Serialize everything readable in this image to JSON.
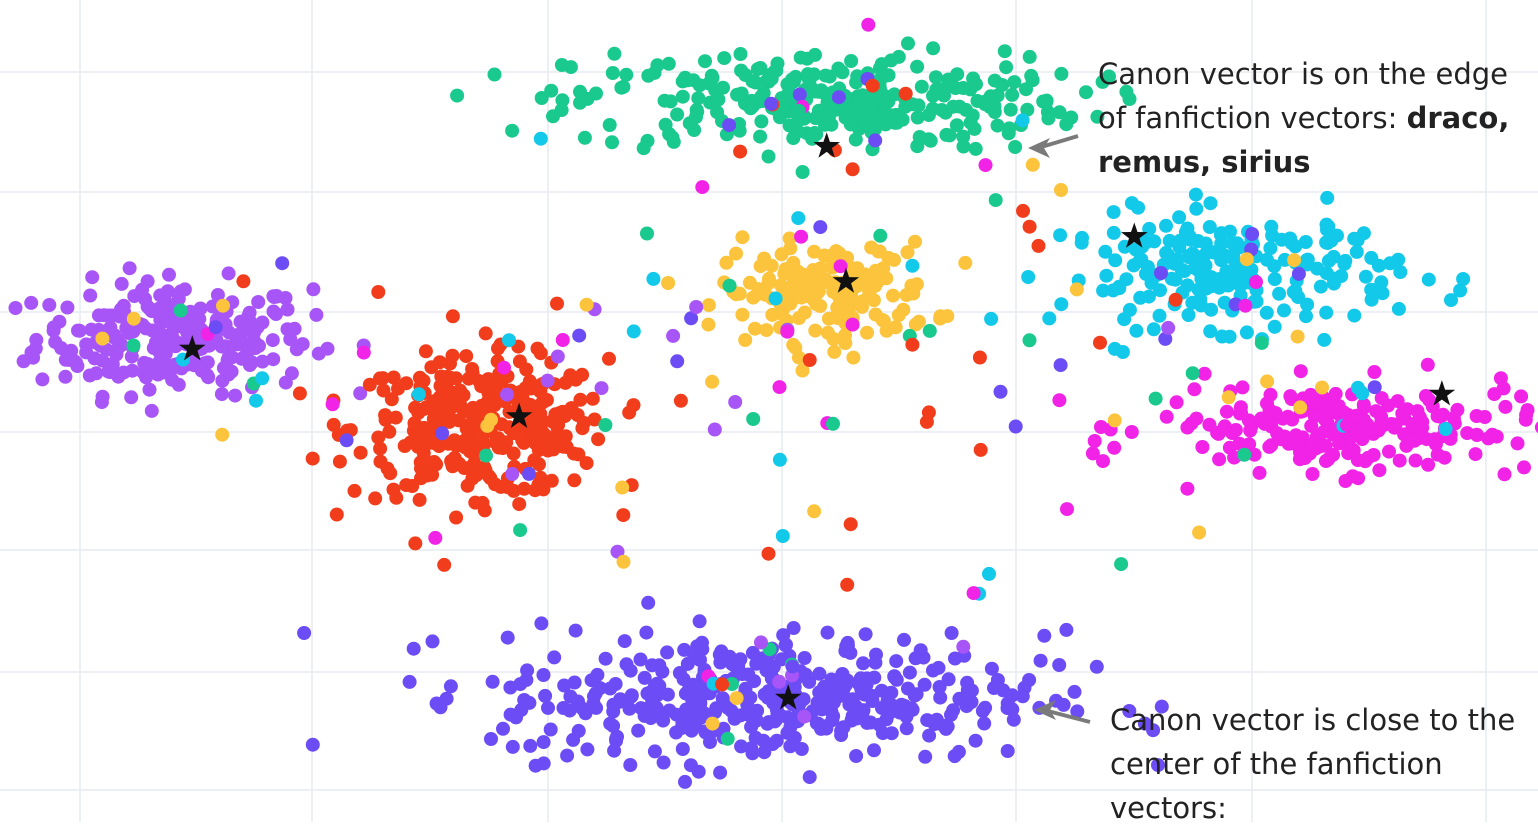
{
  "chart_data": {
    "type": "scatter",
    "title": "",
    "xlabel": "",
    "ylabel": "",
    "grid": true,
    "legend": "none",
    "xlim": [
      -40,
      40
    ],
    "ylim": [
      -38,
      35
    ],
    "marker_legend": {
      "dot": "fanfiction vector",
      "star": "canon vector"
    },
    "series": [
      {
        "color": "#a855f7",
        "center": [
          -31,
          5
        ],
        "spread": [
          6.5,
          4.5
        ],
        "n": 260,
        "canon": [
          -30,
          4
        ]
      },
      {
        "color": "#f23d1c",
        "center": [
          -15,
          -3
        ],
        "spread": [
          6.0,
          5.5
        ],
        "n": 320,
        "canon": [
          -13,
          -2
        ]
      },
      {
        "color": "#19c98e",
        "center": [
          3,
          26
        ],
        "spread": [
          12.0,
          4.0
        ],
        "n": 300,
        "canon": [
          3,
          22
        ]
      },
      {
        "color": "#fbc43c",
        "center": [
          3,
          9
        ],
        "spread": [
          5.0,
          4.0
        ],
        "n": 170,
        "canon": [
          4,
          10
        ]
      },
      {
        "color": "#13c9ea",
        "center": [
          24,
          11
        ],
        "spread": [
          8.0,
          4.5
        ],
        "n": 220,
        "canon": [
          19,
          14
        ]
      },
      {
        "color": "#f023e6",
        "center": [
          30,
          -3
        ],
        "spread": [
          9.0,
          3.5
        ],
        "n": 220,
        "canon": [
          35,
          0
        ]
      },
      {
        "color": "#6c4cf5",
        "center": [
          0,
          -27
        ],
        "spread": [
          13.0,
          5.0
        ],
        "n": 420,
        "canon": [
          1,
          -27
        ]
      }
    ],
    "annotations": [
      {
        "text_plain": "Canon vector is on the edge of fanfiction vectors: ",
        "text_bold": "draco, remus, sirius",
        "arrow_to": "green cluster edge"
      },
      {
        "text_plain": "Canon vector is close to the center of the fanfiction vectors:",
        "text_bold": "",
        "arrow_to": "blue-violet cluster"
      }
    ]
  },
  "colors": {
    "grid": "#e6ebf2",
    "star": "#111111",
    "arrow": "#7a7a7a",
    "background": "#ffffff"
  }
}
